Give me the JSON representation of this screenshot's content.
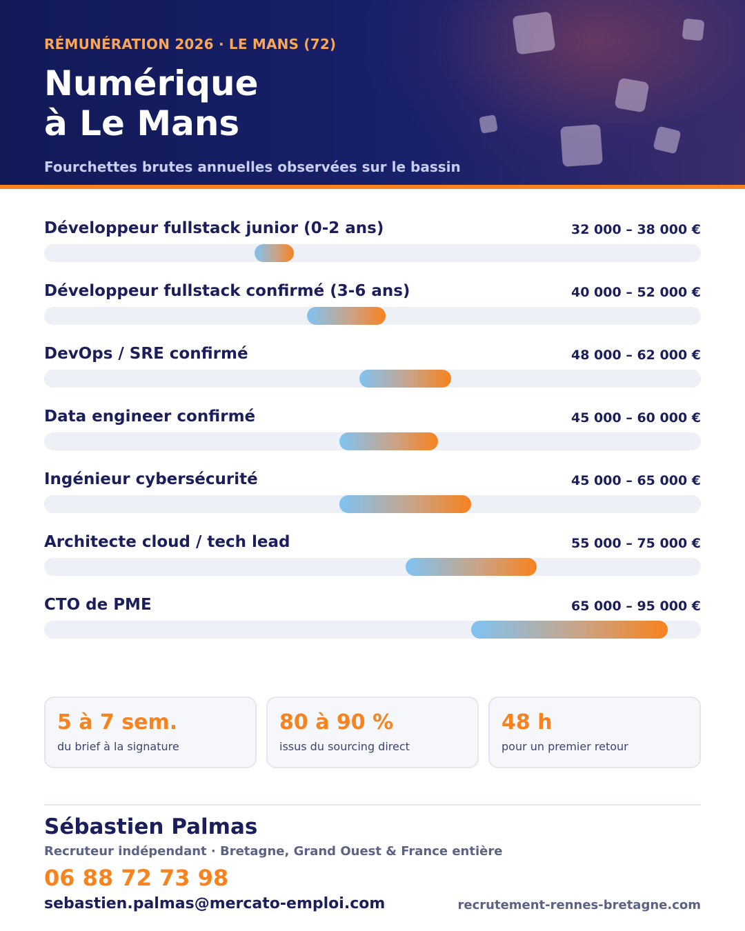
{
  "header": {
    "kicker": "RÉMUNÉRATION 2026  ·  LE MANS (72)",
    "title_line1": "Numérique",
    "title_line2": "à Le Mans",
    "subtitle": "Fourchettes brutes annuelles observées sur le bassin"
  },
  "colors": {
    "navy": "#1a1f5c",
    "orange": "#f7821e",
    "bar_start": "#7fc3f2",
    "track": "#eef0f7"
  },
  "chart_data": {
    "type": "bar",
    "orientation": "horizontal-range",
    "xlim": [
      0,
      100000
    ],
    "unit": "€",
    "grid": false,
    "categories": [
      "Développeur fullstack junior (0-2 ans)",
      "Développeur fullstack confirmé (3-6 ans)",
      "DevOps / SRE confirmé",
      "Data engineer confirmé",
      "Ingénieur cybersécurité",
      "Architecte cloud / tech lead",
      "CTO de PME"
    ],
    "ranges": [
      {
        "min": 32000,
        "max": 38000,
        "label": "32 000 – 38 000 €"
      },
      {
        "min": 40000,
        "max": 52000,
        "label": "40 000 – 52 000 €"
      },
      {
        "min": 48000,
        "max": 62000,
        "label": "48 000 – 62 000 €"
      },
      {
        "min": 45000,
        "max": 60000,
        "label": "45 000 – 60 000 €"
      },
      {
        "min": 45000,
        "max": 65000,
        "label": "45 000 – 65 000 €"
      },
      {
        "min": 55000,
        "max": 75000,
        "label": "55 000 – 75 000 €"
      },
      {
        "min": 65000,
        "max": 95000,
        "label": "65 000 – 95 000 €"
      }
    ]
  },
  "stats": [
    {
      "value": "5 à 7 sem.",
      "label": "du brief à la signature"
    },
    {
      "value": "80 à 90 %",
      "label": "issus du sourcing direct"
    },
    {
      "value": "48 h",
      "label": "pour un premier retour"
    }
  ],
  "contact": {
    "name": "Sébastien Palmas",
    "role": "Recruteur indépendant · Bretagne, Grand Ouest & France entière",
    "phone": "06 88 72 73 98",
    "email": "sebastien.palmas@mercato-emploi.com",
    "website": "recrutement-rennes-bretagne.com"
  }
}
